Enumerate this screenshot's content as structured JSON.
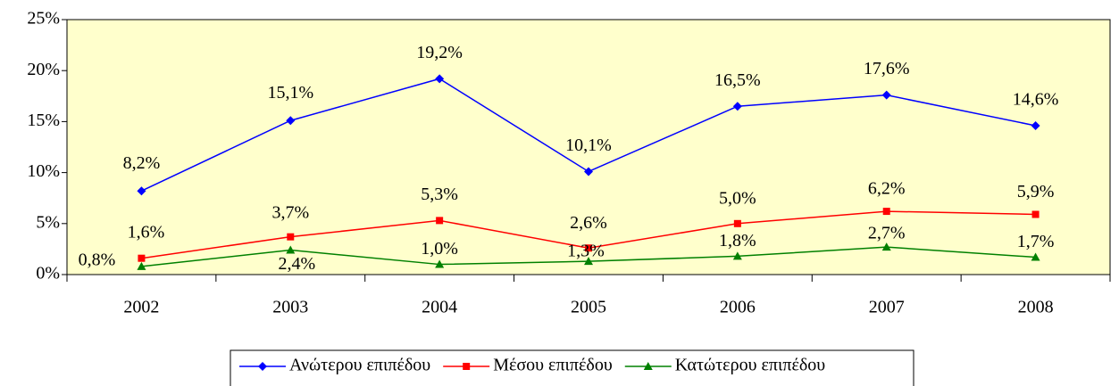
{
  "chart_data": {
    "type": "line",
    "categories": [
      "2002",
      "2003",
      "2004",
      "2005",
      "2006",
      "2007",
      "2008"
    ],
    "series": [
      {
        "name": "Ανώτερου επιπέδου",
        "color": "#0000ff",
        "marker": "diamond",
        "values": [
          8.2,
          15.1,
          19.2,
          10.1,
          16.5,
          17.6,
          14.6
        ],
        "value_labels": [
          "8,2%",
          "15,1%",
          "19,2%",
          "10,1%",
          "16,5%",
          "17,6%",
          "14,6%"
        ]
      },
      {
        "name": "Μέσου επιπέδου",
        "color": "#ff0000",
        "marker": "square",
        "values": [
          1.6,
          3.7,
          5.3,
          2.6,
          5.0,
          6.2,
          5.9
        ],
        "value_labels": [
          "1,6%",
          "3,7%",
          "5,3%",
          "2,6%",
          "5,0%",
          "6,2%",
          "5,9%"
        ]
      },
      {
        "name": "Κατώτερου επιπέδου",
        "color": "#008000",
        "marker": "triangle",
        "values": [
          0.8,
          2.4,
          1.0,
          1.3,
          1.8,
          2.7,
          1.7
        ],
        "value_labels": [
          "0,8%",
          "2,4%",
          "1,0%",
          "1,3%",
          "1,8%",
          "2,7%",
          "1,7%"
        ]
      }
    ],
    "ylim": [
      0,
      25
    ],
    "yticks": [
      {
        "value": 0,
        "label": "0%"
      },
      {
        "value": 5,
        "label": "5%"
      },
      {
        "value": 10,
        "label": "10%"
      },
      {
        "value": 15,
        "label": "15%"
      },
      {
        "value": 20,
        "label": "20%"
      },
      {
        "value": 25,
        "label": "25%"
      }
    ],
    "legend": "bottom",
    "plot_background": "#ffffcc"
  }
}
